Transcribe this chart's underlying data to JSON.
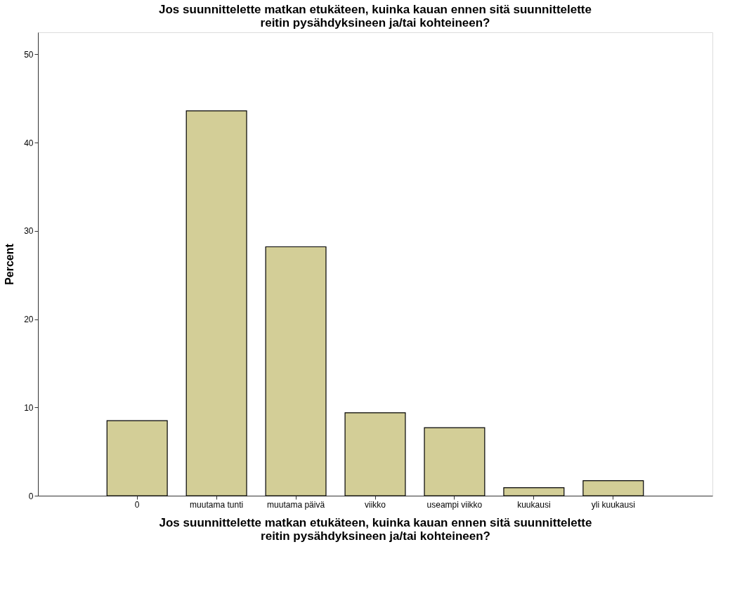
{
  "chart_data": {
    "type": "bar",
    "title": "Jos suunnittelette matkan etukäteen, kuinka kauan ennen sitä suunnittelette reitin pysähdyksineen ja/tai kohteineen?",
    "xlabel": "Jos suunnittelette matkan etukäteen, kuinka kauan ennen sitä suunnittelette reitin pysähdyksineen ja/tai kohteineen?",
    "ylabel": "Percent",
    "categories": [
      "0",
      "muutama tunti",
      "muutama päivä",
      "viikko",
      "useampi viikko",
      "kuukausi",
      "yli kuukausi"
    ],
    "values": [
      8.5,
      43.6,
      28.2,
      9.4,
      7.7,
      0.9,
      1.7
    ],
    "color": "#d3ce97",
    "ylim": [
      0,
      52.5
    ],
    "yticks": [
      0,
      10,
      20,
      30,
      40,
      50
    ],
    "grid": false
  }
}
